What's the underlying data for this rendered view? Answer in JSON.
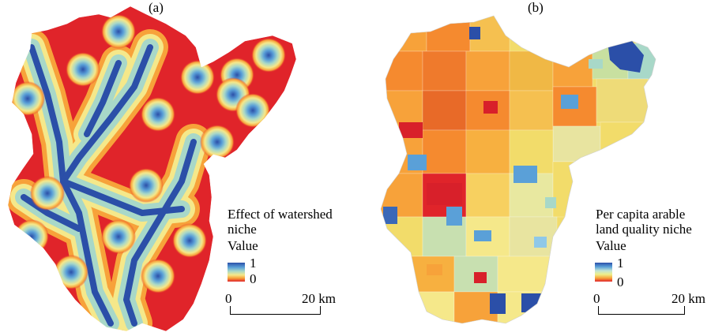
{
  "panel_a": {
    "label": "(a)",
    "legend_title_line1": "Effect of watershed",
    "legend_title_line2": "niche",
    "legend_value_label": "Value",
    "legend_max": "1",
    "legend_min": "0",
    "scale_start": "0",
    "scale_end": "20 km"
  },
  "panel_b": {
    "label": "(b)",
    "legend_title_line1": "Per capita arable",
    "legend_title_line2": "land quality niche",
    "legend_value_label": "Value",
    "legend_max": "1",
    "legend_min": "0",
    "scale_start": "0",
    "scale_end": "20 km"
  },
  "colors": {
    "high": "#2b4fa8",
    "mid_high": "#5aa0d8",
    "mid": "#a8d8c8",
    "mid_low": "#f5e88a",
    "low_mid": "#f7a23a",
    "low": "#e0242a"
  }
}
